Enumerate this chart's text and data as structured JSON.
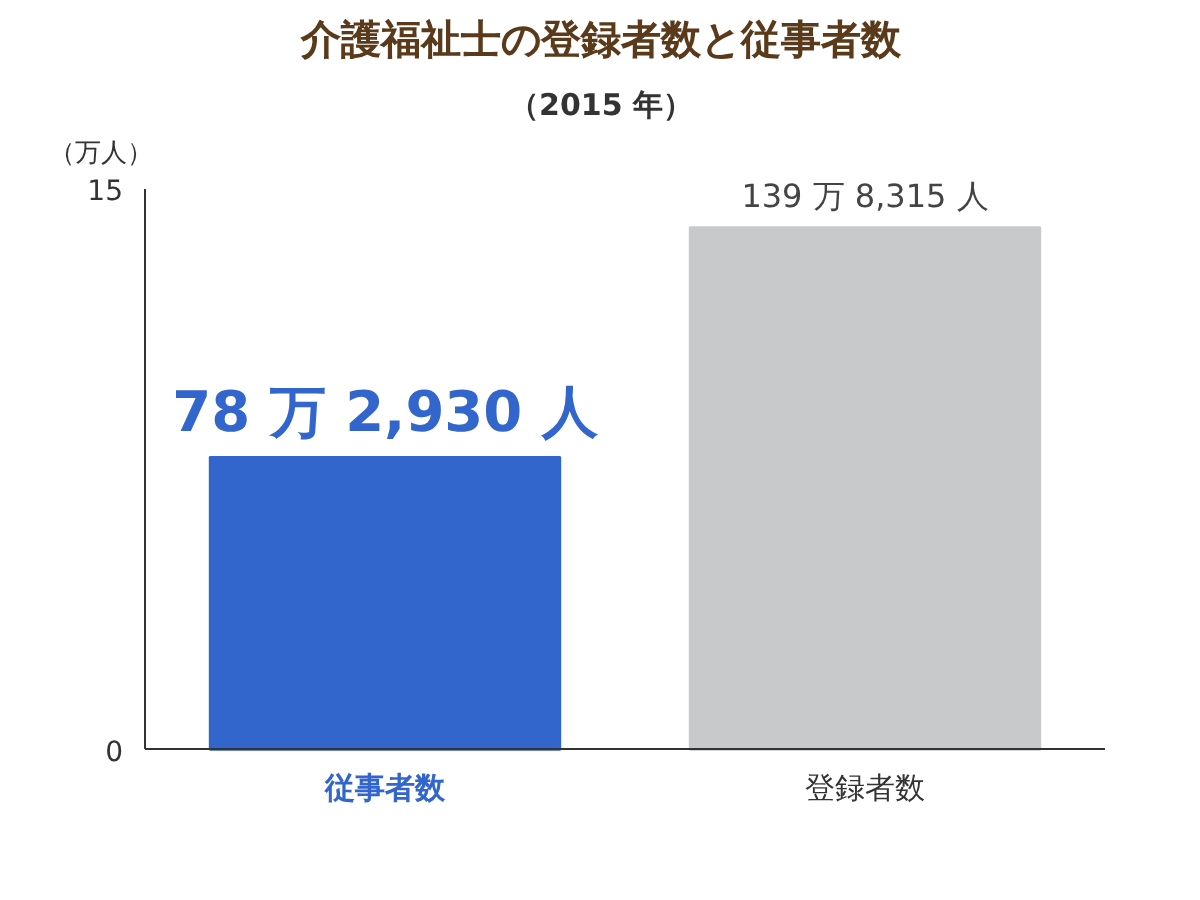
{
  "chart_data": {
    "type": "bar",
    "title": "介護福祉士の登録者数と従事者数",
    "subtitle": "（2015 年）",
    "ylabel": "（万人）",
    "categories": [
      "従事者数",
      "登録者数"
    ],
    "values": [
      7.83,
      13.98
    ],
    "colors": [
      "#3366cc",
      "#c8c9cb"
    ],
    "annotations": [
      {
        "text": "78 万 2,930 人",
        "x": "従事者数",
        "y": 7.83
      },
      {
        "text": "139 万 8,315 人",
        "x": "登録者数",
        "y": 13.98
      }
    ],
    "ylim": [
      0,
      15
    ],
    "yticks": [
      0,
      15
    ]
  }
}
